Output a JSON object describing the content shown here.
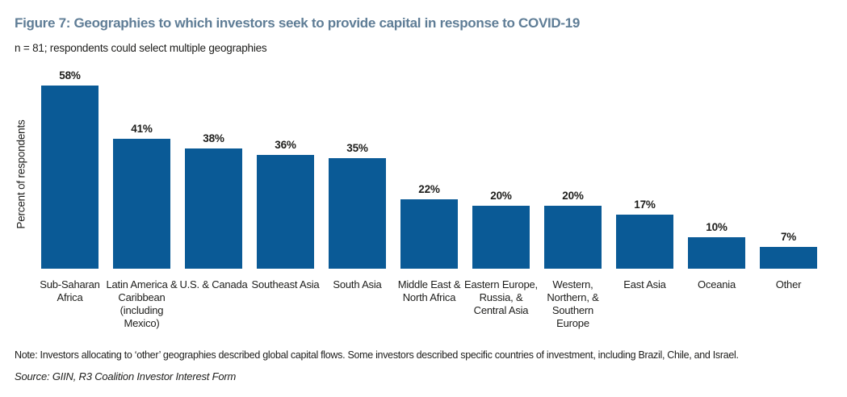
{
  "chart_data": {
    "type": "bar",
    "title": "Figure 7: Geographies to which investors seek to provide capital in response to COVID-19",
    "subtitle": "n = 81; respondents could select multiple geographies",
    "xlabel": "",
    "ylabel": "Percent of respondents",
    "ylim": [
      0,
      60
    ],
    "grid": false,
    "legend": "none",
    "value_suffix": "%",
    "categories": [
      "Sub-Saharan\nAfrica",
      "Latin America &\nCaribbean\n(including\nMexico)",
      "U.S. & Canada",
      "Southeast Asia",
      "South Asia",
      "Middle East &\nNorth Africa",
      "Eastern Europe,\nRussia, &\nCentral Asia",
      "Western,\nNorthern, &\nSouthern\nEurope",
      "East Asia",
      "Oceania",
      "Other"
    ],
    "values": [
      58,
      41,
      38,
      36,
      35,
      22,
      20,
      20,
      17,
      10,
      7
    ],
    "note": "Note: Investors allocating to ‘other’ geographies described global capital flows. Some investors described specific countries of investment, including Brazil, Chile, and Israel.",
    "source": "Source: GIIN, R3 Coalition Investor Interest Form",
    "colors": {
      "bar": "#0a5a96",
      "title": "#5f7d96",
      "text": "#1d1d1b"
    }
  }
}
